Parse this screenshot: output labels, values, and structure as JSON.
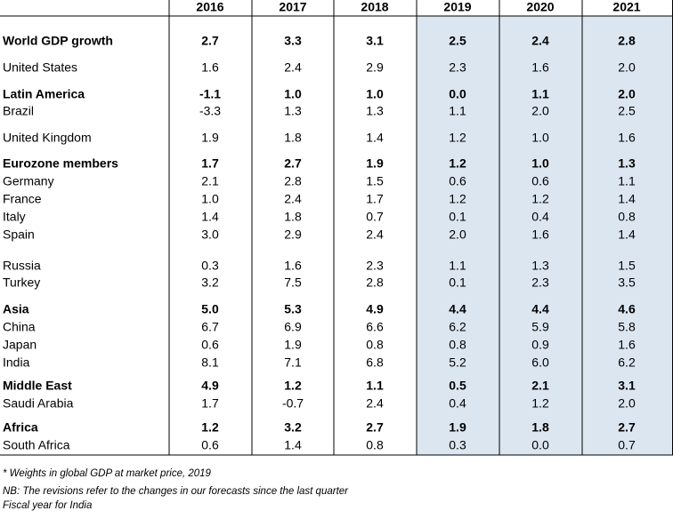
{
  "header": {
    "years": [
      "2016",
      "2017",
      "2018",
      "2019",
      "2020",
      "2021"
    ]
  },
  "table": {
    "rows": [
      {
        "label": "World GDP growth",
        "bold": true,
        "values": [
          "2.7",
          "3.3",
          "3.1",
          "2.5",
          "2.4",
          "2.8"
        ]
      },
      {
        "label": "United States",
        "bold": false,
        "values": [
          "1.6",
          "2.4",
          "2.9",
          "2.3",
          "1.6",
          "2.0"
        ]
      },
      {
        "label": "Latin America",
        "bold": true,
        "values": [
          "-1.1",
          "1.0",
          "1.0",
          "0.0",
          "1.1",
          "2.0"
        ]
      },
      {
        "label": "Brazil",
        "bold": false,
        "values": [
          "-3.3",
          "1.3",
          "1.3",
          "1.1",
          "2.0",
          "2.5"
        ]
      },
      {
        "label": "United Kingdom",
        "bold": false,
        "values": [
          "1.9",
          "1.8",
          "1.4",
          "1.2",
          "1.0",
          "1.6"
        ]
      },
      {
        "label": "Eurozone members",
        "bold": true,
        "values": [
          "1.7",
          "2.7",
          "1.9",
          "1.2",
          "1.0",
          "1.3"
        ]
      },
      {
        "label": "Germany",
        "bold": false,
        "values": [
          "2.1",
          "2.8",
          "1.5",
          "0.6",
          "0.6",
          "1.1"
        ]
      },
      {
        "label": "France",
        "bold": false,
        "values": [
          "1.0",
          "2.4",
          "1.7",
          "1.2",
          "1.2",
          "1.4"
        ]
      },
      {
        "label": "Italy",
        "bold": false,
        "values": [
          "1.4",
          "1.8",
          "0.7",
          "0.1",
          "0.4",
          "0.8"
        ]
      },
      {
        "label": "Spain",
        "bold": false,
        "values": [
          "3.0",
          "2.9",
          "2.4",
          "2.0",
          "1.6",
          "1.4"
        ]
      },
      {
        "label": "Russia",
        "bold": false,
        "values": [
          "0.3",
          "1.6",
          "2.3",
          "1.1",
          "1.3",
          "1.5"
        ]
      },
      {
        "label": "Turkey",
        "bold": false,
        "values": [
          "3.2",
          "7.5",
          "2.8",
          "0.1",
          "2.3",
          "3.5"
        ]
      },
      {
        "label": "Asia",
        "bold": true,
        "values": [
          "5.0",
          "5.3",
          "4.9",
          "4.4",
          "4.4",
          "4.6"
        ]
      },
      {
        "label": "China",
        "bold": false,
        "values": [
          "6.7",
          "6.9",
          "6.6",
          "6.2",
          "5.9",
          "5.8"
        ]
      },
      {
        "label": "Japan",
        "bold": false,
        "values": [
          "0.6",
          "1.9",
          "0.8",
          "0.8",
          "0.9",
          "1.6"
        ]
      },
      {
        "label": "India",
        "bold": false,
        "values": [
          "8.1",
          "7.1",
          "6.8",
          "5.2",
          "6.0",
          "6.2"
        ]
      },
      {
        "label": "Middle East",
        "bold": true,
        "values": [
          "4.9",
          "1.2",
          "1.1",
          "0.5",
          "2.1",
          "3.1"
        ]
      },
      {
        "label": "Saudi Arabia",
        "bold": false,
        "values": [
          "1.7",
          "-0.7",
          "2.4",
          "0.4",
          "1.2",
          "2.0"
        ]
      },
      {
        "label": "Africa",
        "bold": true,
        "values": [
          "1.2",
          "3.2",
          "2.7",
          "1.9",
          "1.8",
          "2.7"
        ]
      },
      {
        "label": "South Africa",
        "bold": false,
        "values": [
          "0.6",
          "1.4",
          "0.8",
          "0.3",
          "0.0",
          "0.7"
        ]
      }
    ]
  },
  "footnotes": [
    "* Weights in global GDP at market price, 2019",
    "NB: The revisions refer to the changes in our forecasts since the last quarter",
    "Fiscal year for India"
  ]
}
